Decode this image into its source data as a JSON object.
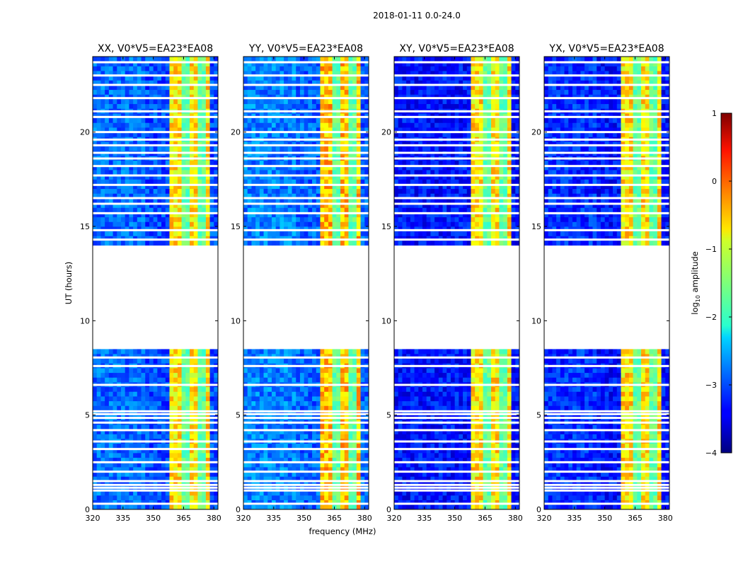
{
  "chart_data": {
    "type": "heatmap",
    "suptitle": "2018-01-11 0.0-24.0",
    "xlabel": "frequency (MHz)",
    "ylabel": "UT (hours)",
    "colorbar_label": "log10 amplitude",
    "colorbar_prefix": "log",
    "colorbar_sub": "10",
    "colorbar_suffix": " amplitude",
    "colorbar_range": [
      -4,
      1
    ],
    "colorbar_ticks": [
      "1",
      "0",
      "−1",
      "−2",
      "−3",
      "−4"
    ],
    "colormap": "jet",
    "xlim": [
      320,
      382
    ],
    "ylim": [
      0,
      24
    ],
    "xticks": [
      "320",
      "335",
      "350",
      "365",
      "380"
    ],
    "yticks": [
      "0",
      "5",
      "10",
      "15",
      "20"
    ],
    "panels": [
      {
        "title": "XX, V0*V5=EA23*EA08",
        "product": "XX",
        "rfi_band_mhz": [
          359,
          377
        ],
        "background_log10": -3.0
      },
      {
        "title": "YY, V0*V5=EA23*EA08",
        "product": "YY",
        "rfi_band_mhz": [
          359,
          377
        ],
        "background_log10": -2.9
      },
      {
        "title": "XY, V0*V5=EA23*EA08",
        "product": "XY",
        "rfi_band_mhz": [
          359,
          377
        ],
        "background_log10": -3.3
      },
      {
        "title": "YX, V0*V5=EA23*EA08",
        "product": "YX",
        "rfi_band_mhz": [
          359,
          377
        ],
        "background_log10": -3.3
      }
    ],
    "data_gap_ut_hours": [
      8.5,
      13.8
    ],
    "flagged_time_rows_ut_hours": [
      0.3,
      1.0,
      1.15,
      1.3,
      1.5,
      2.0,
      2.5,
      3.2,
      3.6,
      4.2,
      4.6,
      4.85,
      5.05,
      5.2,
      6.6,
      7.6,
      8.05,
      14.3,
      14.8,
      15.7,
      16.2,
      16.5,
      17.2,
      17.7,
      18.2,
      18.6,
      18.9,
      19.3,
      19.6,
      20.0,
      20.8,
      21.1,
      21.8,
      22.5,
      23.0,
      23.7
    ]
  }
}
